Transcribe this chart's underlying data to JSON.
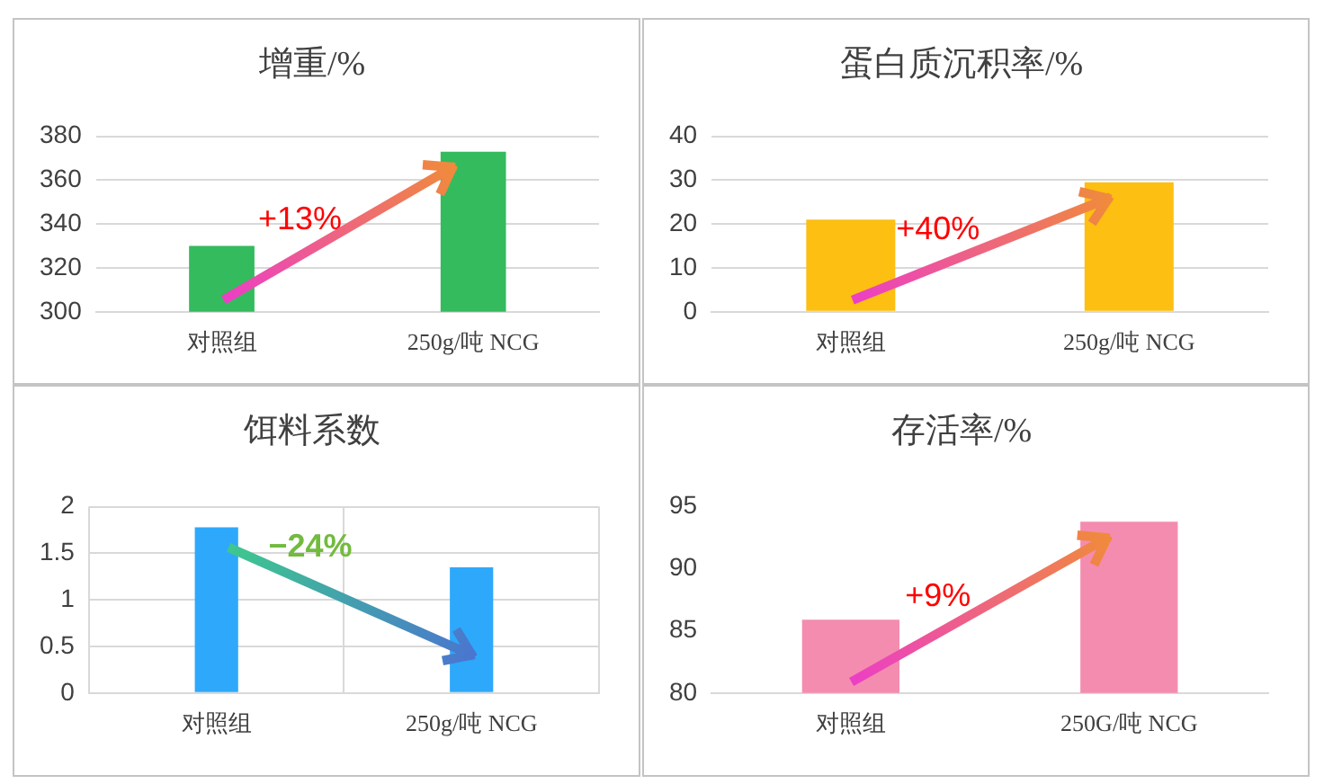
{
  "chart_data": [
    {
      "type": "bar",
      "title": "增重/%",
      "categories": [
        "对照组",
        "250g/吨 NCG"
      ],
      "values": [
        330,
        373
      ],
      "color": "#33bb5e",
      "ylim": [
        300,
        380
      ],
      "yticks": [
        300,
        320,
        340,
        360,
        380
      ],
      "grid": "y",
      "annotations": [
        "+13%"
      ]
    },
    {
      "type": "bar",
      "title": "蛋白质沉积率/%",
      "categories": [
        "对照组",
        "250g/吨 NCG"
      ],
      "values": [
        21,
        29.5
      ],
      "color": "#fcbf12",
      "ylim": [
        0,
        40
      ],
      "yticks": [
        0,
        10,
        20,
        30,
        40
      ],
      "grid": "y",
      "annotations": [
        "+40%"
      ]
    },
    {
      "type": "bar",
      "title": "饵料系数",
      "categories": [
        "对照组",
        "250g/吨 NCG"
      ],
      "values": [
        1.78,
        1.35
      ],
      "color": "#2ea8fb",
      "ylim": [
        0,
        2
      ],
      "yticks": [
        0,
        0.5,
        1,
        1.5,
        2
      ],
      "grid": true,
      "annotations": [
        "−24%"
      ]
    },
    {
      "type": "bar",
      "title": "存活率/%",
      "categories": [
        "对照组",
        "250G/吨 NCG"
      ],
      "values": [
        85.9,
        93.8
      ],
      "color": "#f48cb0",
      "ylim": [
        80,
        95
      ],
      "yticks": [
        80,
        85,
        90,
        95
      ],
      "annotations": [
        "+9%"
      ]
    }
  ]
}
